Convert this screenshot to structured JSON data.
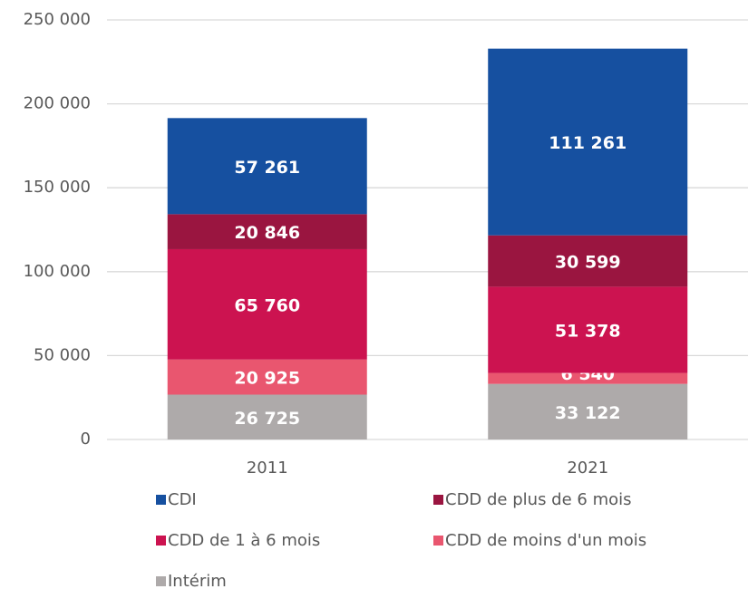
{
  "chart_data": {
    "type": "bar",
    "stacked": true,
    "categories": [
      "2011",
      "2021"
    ],
    "series": [
      {
        "name": "Intérim",
        "color": "#aeaaaa",
        "values": [
          26725,
          33122
        ],
        "value_labels": [
          "26 725",
          "33 122"
        ]
      },
      {
        "name": "CDD de moins d'un mois",
        "color": "#e9566f",
        "values": [
          20925,
          6540
        ],
        "value_labels": [
          "20 925",
          "6 540"
        ]
      },
      {
        "name": "CDD de 1 à 6 mois",
        "color": "#cc1350",
        "values": [
          65760,
          51378
        ],
        "value_labels": [
          "65 760",
          "51 378"
        ]
      },
      {
        "name": "CDD de plus de 6 mois",
        "color": "#9a1540",
        "values": [
          20846,
          30599
        ],
        "value_labels": [
          "20 846",
          "30 599"
        ]
      },
      {
        "name": "CDI",
        "color": "#1650a0",
        "values": [
          57261,
          111261
        ],
        "value_labels": [
          "57 261",
          "111 261"
        ]
      }
    ],
    "ylim": [
      0,
      250000
    ],
    "yticks": [
      0,
      {
        "value": 50000,
        "label": "50 000"
      },
      {
        "value": 100000,
        "label": "100 000"
      },
      {
        "value": 150000,
        "label": "150 000"
      },
      {
        "value": 200000,
        "label": "200 000"
      },
      {
        "value": 250000,
        "label": "250 000"
      }
    ],
    "grid": true,
    "legend": "bottom"
  }
}
